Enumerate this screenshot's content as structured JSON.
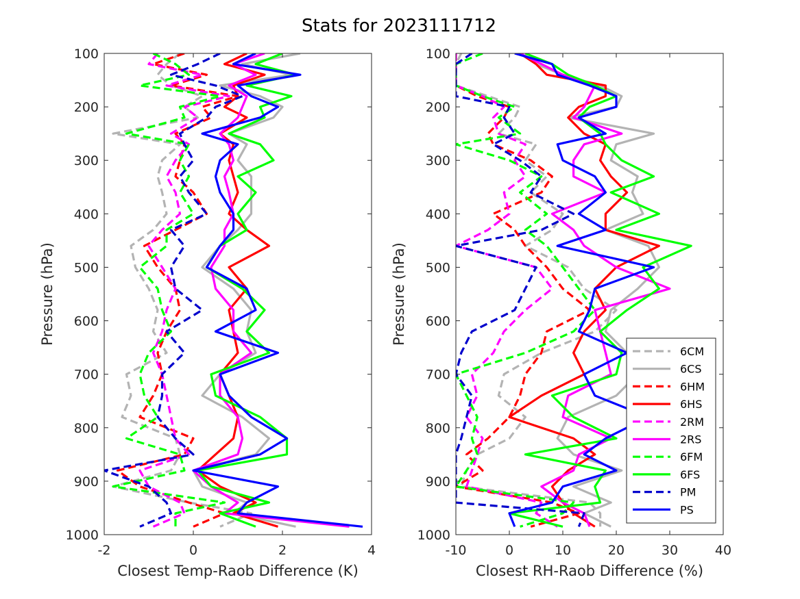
{
  "title": "Stats for 2023111712",
  "chart_data": [
    {
      "type": "line",
      "xlabel": "Closest Temp-Raob Difference (K)",
      "ylabel": "Pressure (hPa)",
      "xlim": [
        -2,
        4
      ],
      "ylim": [
        100,
        1000
      ],
      "y_reversed": true,
      "xticks": [
        "-2",
        "0",
        "2",
        "4"
      ],
      "yticks": [
        "100",
        "200",
        "300",
        "400",
        "500",
        "600",
        "700",
        "800",
        "900",
        "1000"
      ],
      "y": [
        100,
        120,
        140,
        160,
        180,
        200,
        220,
        250,
        270,
        300,
        330,
        360,
        400,
        430,
        460,
        500,
        540,
        580,
        620,
        660,
        700,
        740,
        780,
        820,
        850,
        880,
        910,
        940,
        960,
        985
      ],
      "series": [
        {
          "name": "6CM",
          "color": "#b3b3b3",
          "dash": true,
          "values": [
            -0.3,
            -0.6,
            -0.8,
            -0.5,
            0.2,
            -0.2,
            0.1,
            -1.8,
            -0.3,
            -0.7,
            -0.8,
            -0.7,
            -0.6,
            -0.9,
            -1.4,
            -1.3,
            -1.0,
            -0.8,
            -0.9,
            -0.6,
            -1.5,
            -1.4,
            -1.6,
            -0.4,
            -0.3,
            -0.5,
            -1.8,
            -0.1,
            1.3,
            0.6
          ]
        },
        {
          "name": "6CS",
          "color": "#b3b3b3",
          "dash": false,
          "values": [
            2.4,
            1.1,
            2.2,
            0.6,
            1.5,
            2.0,
            1.8,
            0.8,
            1.2,
            1.0,
            1.3,
            1.3,
            1.3,
            1.0,
            0.6,
            0.2,
            0.9,
            1.3,
            1.2,
            1.4,
            0.6,
            0.2,
            1.1,
            1.7,
            1.4,
            0.0,
            0.2,
            1.2,
            0.9,
            2.3
          ]
        },
        {
          "name": "6HM",
          "color": "#ff0000",
          "dash": true,
          "values": [
            -0.2,
            -0.9,
            0.3,
            -0.5,
            1.0,
            0.2,
            0.4,
            -0.4,
            -0.2,
            -0.3,
            -0.4,
            0.0,
            0.3,
            -0.4,
            -1.1,
            -0.8,
            -0.4,
            -0.3,
            -0.6,
            -0.8,
            -0.7,
            -0.9,
            -1.2,
            0.0,
            -0.2,
            -1.7,
            -1.2,
            -0.1,
            0.7,
            0.0
          ]
        },
        {
          "name": "6HS",
          "color": "#ff0000",
          "dash": false,
          "values": [
            1.2,
            0.7,
            1.6,
            0.9,
            1.0,
            0.7,
            1.2,
            0.6,
            0.9,
            0.8,
            0.9,
            1.0,
            0.8,
            1.2,
            1.7,
            0.8,
            1.2,
            0.8,
            0.9,
            1.0,
            0.6,
            0.8,
            1.0,
            0.9,
            0.5,
            0.1,
            0.6,
            1.4,
            0.9,
            1.9
          ]
        },
        {
          "name": "2RM",
          "color": "#ff00ff",
          "dash": true,
          "values": [
            -0.8,
            -1.0,
            0.2,
            -0.6,
            0.8,
            -0.2,
            0.1,
            -0.5,
            -0.1,
            -0.4,
            -0.6,
            -0.4,
            -0.3,
            -0.7,
            -1.0,
            -0.7,
            -0.4,
            -0.6,
            -0.7,
            -0.9,
            -0.7,
            -0.6,
            -0.5,
            -0.4,
            -0.1,
            -1.2,
            -1.0,
            -0.3,
            -0.2,
            -0.9
          ]
        },
        {
          "name": "2RS",
          "color": "#ff00ff",
          "dash": false,
          "values": [
            1.6,
            0.9,
            1.4,
            0.8,
            1.2,
            1.1,
            1.0,
            0.6,
            0.8,
            0.9,
            0.7,
            0.8,
            0.9,
            0.7,
            0.7,
            0.4,
            0.5,
            0.9,
            0.9,
            1.3,
            0.6,
            0.6,
            1.0,
            1.1,
            1.0,
            0.0,
            0.4,
            1.0,
            0.7,
            3.5
          ]
        },
        {
          "name": "6FM",
          "color": "#00ff00",
          "dash": true,
          "values": [
            -0.9,
            -0.4,
            -0.1,
            -1.2,
            0.6,
            -0.3,
            -0.2,
            -1.5,
            -0.1,
            -0.3,
            -0.1,
            -0.3,
            0.0,
            -0.6,
            -0.6,
            -1.2,
            -0.8,
            -0.7,
            -0.5,
            -1.0,
            -1.2,
            -1.1,
            -0.8,
            -1.5,
            -0.3,
            -0.2,
            -1.8,
            0.7,
            -0.4,
            -0.4
          ]
        },
        {
          "name": "6FS",
          "color": "#00ff00",
          "dash": false,
          "values": [
            2.0,
            1.4,
            2.3,
            1.2,
            2.2,
            1.5,
            1.6,
            0.8,
            1.5,
            1.8,
            1.0,
            1.4,
            1.0,
            1.2,
            0.6,
            0.3,
            1.1,
            1.6,
            1.2,
            1.7,
            0.4,
            0.5,
            1.5,
            2.1,
            2.1,
            0.1,
            0.4,
            1.7,
            0.6,
            1.4
          ]
        },
        {
          "name": "PM",
          "color": "#0000cc",
          "dash": true,
          "values": [
            0.6,
            0.1,
            -0.5,
            0.5,
            1.1,
            0.5,
            0.3,
            -0.3,
            -0.2,
            0.0,
            -0.3,
            -0.1,
            0.3,
            -0.5,
            -0.2,
            -0.5,
            -0.4,
            0.2,
            -0.6,
            -0.2,
            -0.7,
            -0.7,
            -0.8,
            -0.4,
            0.0,
            -2.0,
            -1.0,
            -0.6,
            -0.5,
            -1.2
          ]
        },
        {
          "name": "PS",
          "color": "#0000ff",
          "dash": false,
          "values": [
            1.4,
            0.9,
            2.4,
            1.0,
            1.3,
            1.9,
            1.5,
            0.2,
            1.0,
            0.6,
            0.5,
            0.6,
            0.9,
            0.9,
            0.6,
            0.3,
            1.2,
            1.4,
            0.5,
            1.9,
            0.6,
            0.8,
            1.3,
            2.1,
            1.5,
            0.0,
            1.9,
            1.2,
            1.0,
            3.8
          ]
        }
      ]
    },
    {
      "type": "line",
      "xlabel": "Closest RH-Raob Difference (%)",
      "ylabel": "Pressure (hPa)",
      "xlim": [
        -10,
        40
      ],
      "ylim": [
        100,
        1000
      ],
      "y_reversed": true,
      "xticks": [
        "-10",
        "0",
        "10",
        "20",
        "30",
        "40"
      ],
      "yticks": [
        "100",
        "200",
        "300",
        "400",
        "500",
        "600",
        "700",
        "800",
        "900",
        "1000"
      ],
      "legend_location": "bottom-right",
      "y": [
        100,
        120,
        140,
        160,
        180,
        200,
        220,
        250,
        270,
        300,
        330,
        360,
        400,
        430,
        460,
        500,
        540,
        580,
        620,
        660,
        700,
        740,
        780,
        820,
        850,
        880,
        910,
        940,
        960,
        985
      ],
      "series": [
        {
          "name": "6CM",
          "color": "#b3b3b3",
          "dash": true,
          "values": [
            -9,
            -10,
            -10,
            -10,
            -4,
            2,
            1,
            -2,
            5,
            3,
            7,
            4,
            10,
            8,
            3,
            11,
            14,
            20,
            16,
            6,
            -1,
            -2,
            3,
            0,
            -6,
            -8,
            -9,
            15,
            17,
            17
          ]
        },
        {
          "name": "6CS",
          "color": "#b3b3b3",
          "dash": false,
          "values": [
            2,
            5,
            10,
            17,
            21,
            20,
            11,
            27,
            20,
            19,
            24,
            23,
            25,
            18,
            26,
            28,
            24,
            19,
            18,
            22,
            24,
            20,
            11,
            9,
            12,
            21,
            12,
            19,
            14,
            19
          ]
        },
        {
          "name": "6HM",
          "color": "#ff0000",
          "dash": true,
          "values": [
            -10,
            -10,
            -10,
            -10,
            -6,
            0,
            -1,
            -4,
            -3,
            4,
            8,
            6,
            -3,
            1,
            3,
            7,
            10,
            15,
            7,
            6,
            3,
            2,
            0,
            -4,
            -8,
            -5,
            -10,
            8,
            13,
            4
          ]
        },
        {
          "name": "6HS",
          "color": "#ff0000",
          "dash": false,
          "values": [
            2,
            5,
            7,
            18,
            18,
            13,
            11,
            14,
            18,
            17,
            19,
            22,
            18,
            18,
            28,
            20,
            16,
            18,
            14,
            12,
            14,
            6,
            0,
            12,
            16,
            11,
            8,
            10,
            12,
            16
          ]
        },
        {
          "name": "2RM",
          "color": "#ff00ff",
          "dash": true,
          "values": [
            -10,
            -10,
            -10,
            -10,
            -5,
            -1,
            -3,
            -2,
            3,
            1,
            3,
            -1,
            0,
            -4,
            -10,
            5,
            8,
            3,
            -1,
            -3,
            -7,
            -6,
            -8,
            -5,
            -6,
            -7,
            -8,
            6,
            5,
            9
          ]
        },
        {
          "name": "2RS",
          "color": "#ff00ff",
          "dash": false,
          "values": [
            2,
            6,
            10,
            16,
            15,
            14,
            12,
            21,
            14,
            12,
            12,
            18,
            8,
            12,
            14,
            20,
            30,
            16,
            17,
            18,
            19,
            11,
            10,
            19,
            13,
            12,
            6,
            10,
            14,
            15
          ]
        },
        {
          "name": "6FM",
          "color": "#00ff00",
          "dash": true,
          "values": [
            -5,
            -10,
            -10,
            -10,
            -5,
            1,
            -2,
            2,
            -10,
            0,
            6,
            2,
            7,
            3,
            7,
            10,
            13,
            16,
            12,
            3,
            -10,
            -8,
            -6,
            -7,
            -6,
            -8,
            -10,
            12,
            10,
            2
          ]
        },
        {
          "name": "6FS",
          "color": "#00ff00",
          "dash": false,
          "values": [
            3,
            8,
            11,
            16,
            20,
            15,
            13,
            17,
            18,
            21,
            27,
            19,
            28,
            20,
            34,
            25,
            28,
            22,
            17,
            21,
            20,
            8,
            12,
            20,
            3,
            18,
            16,
            17,
            0,
            10
          ]
        },
        {
          "name": "PM",
          "color": "#0000cc",
          "dash": true,
          "values": [
            -7,
            -10,
            -10,
            -10,
            -10,
            0,
            -1,
            1,
            -3,
            2,
            6,
            4,
            12,
            6,
            -10,
            5,
            3,
            1,
            -7,
            -9,
            -10,
            -7,
            -8,
            -9,
            -10,
            -10,
            -10,
            -10,
            14,
            13
          ]
        },
        {
          "name": "PS",
          "color": "#0000ff",
          "dash": false,
          "values": [
            1,
            8,
            9,
            15,
            20,
            20,
            13,
            18,
            9,
            10,
            16,
            18,
            13,
            18,
            9,
            27,
            16,
            15,
            13,
            22,
            14,
            16,
            26,
            18,
            14,
            20,
            10,
            8,
            0,
            1
          ]
        }
      ]
    }
  ]
}
